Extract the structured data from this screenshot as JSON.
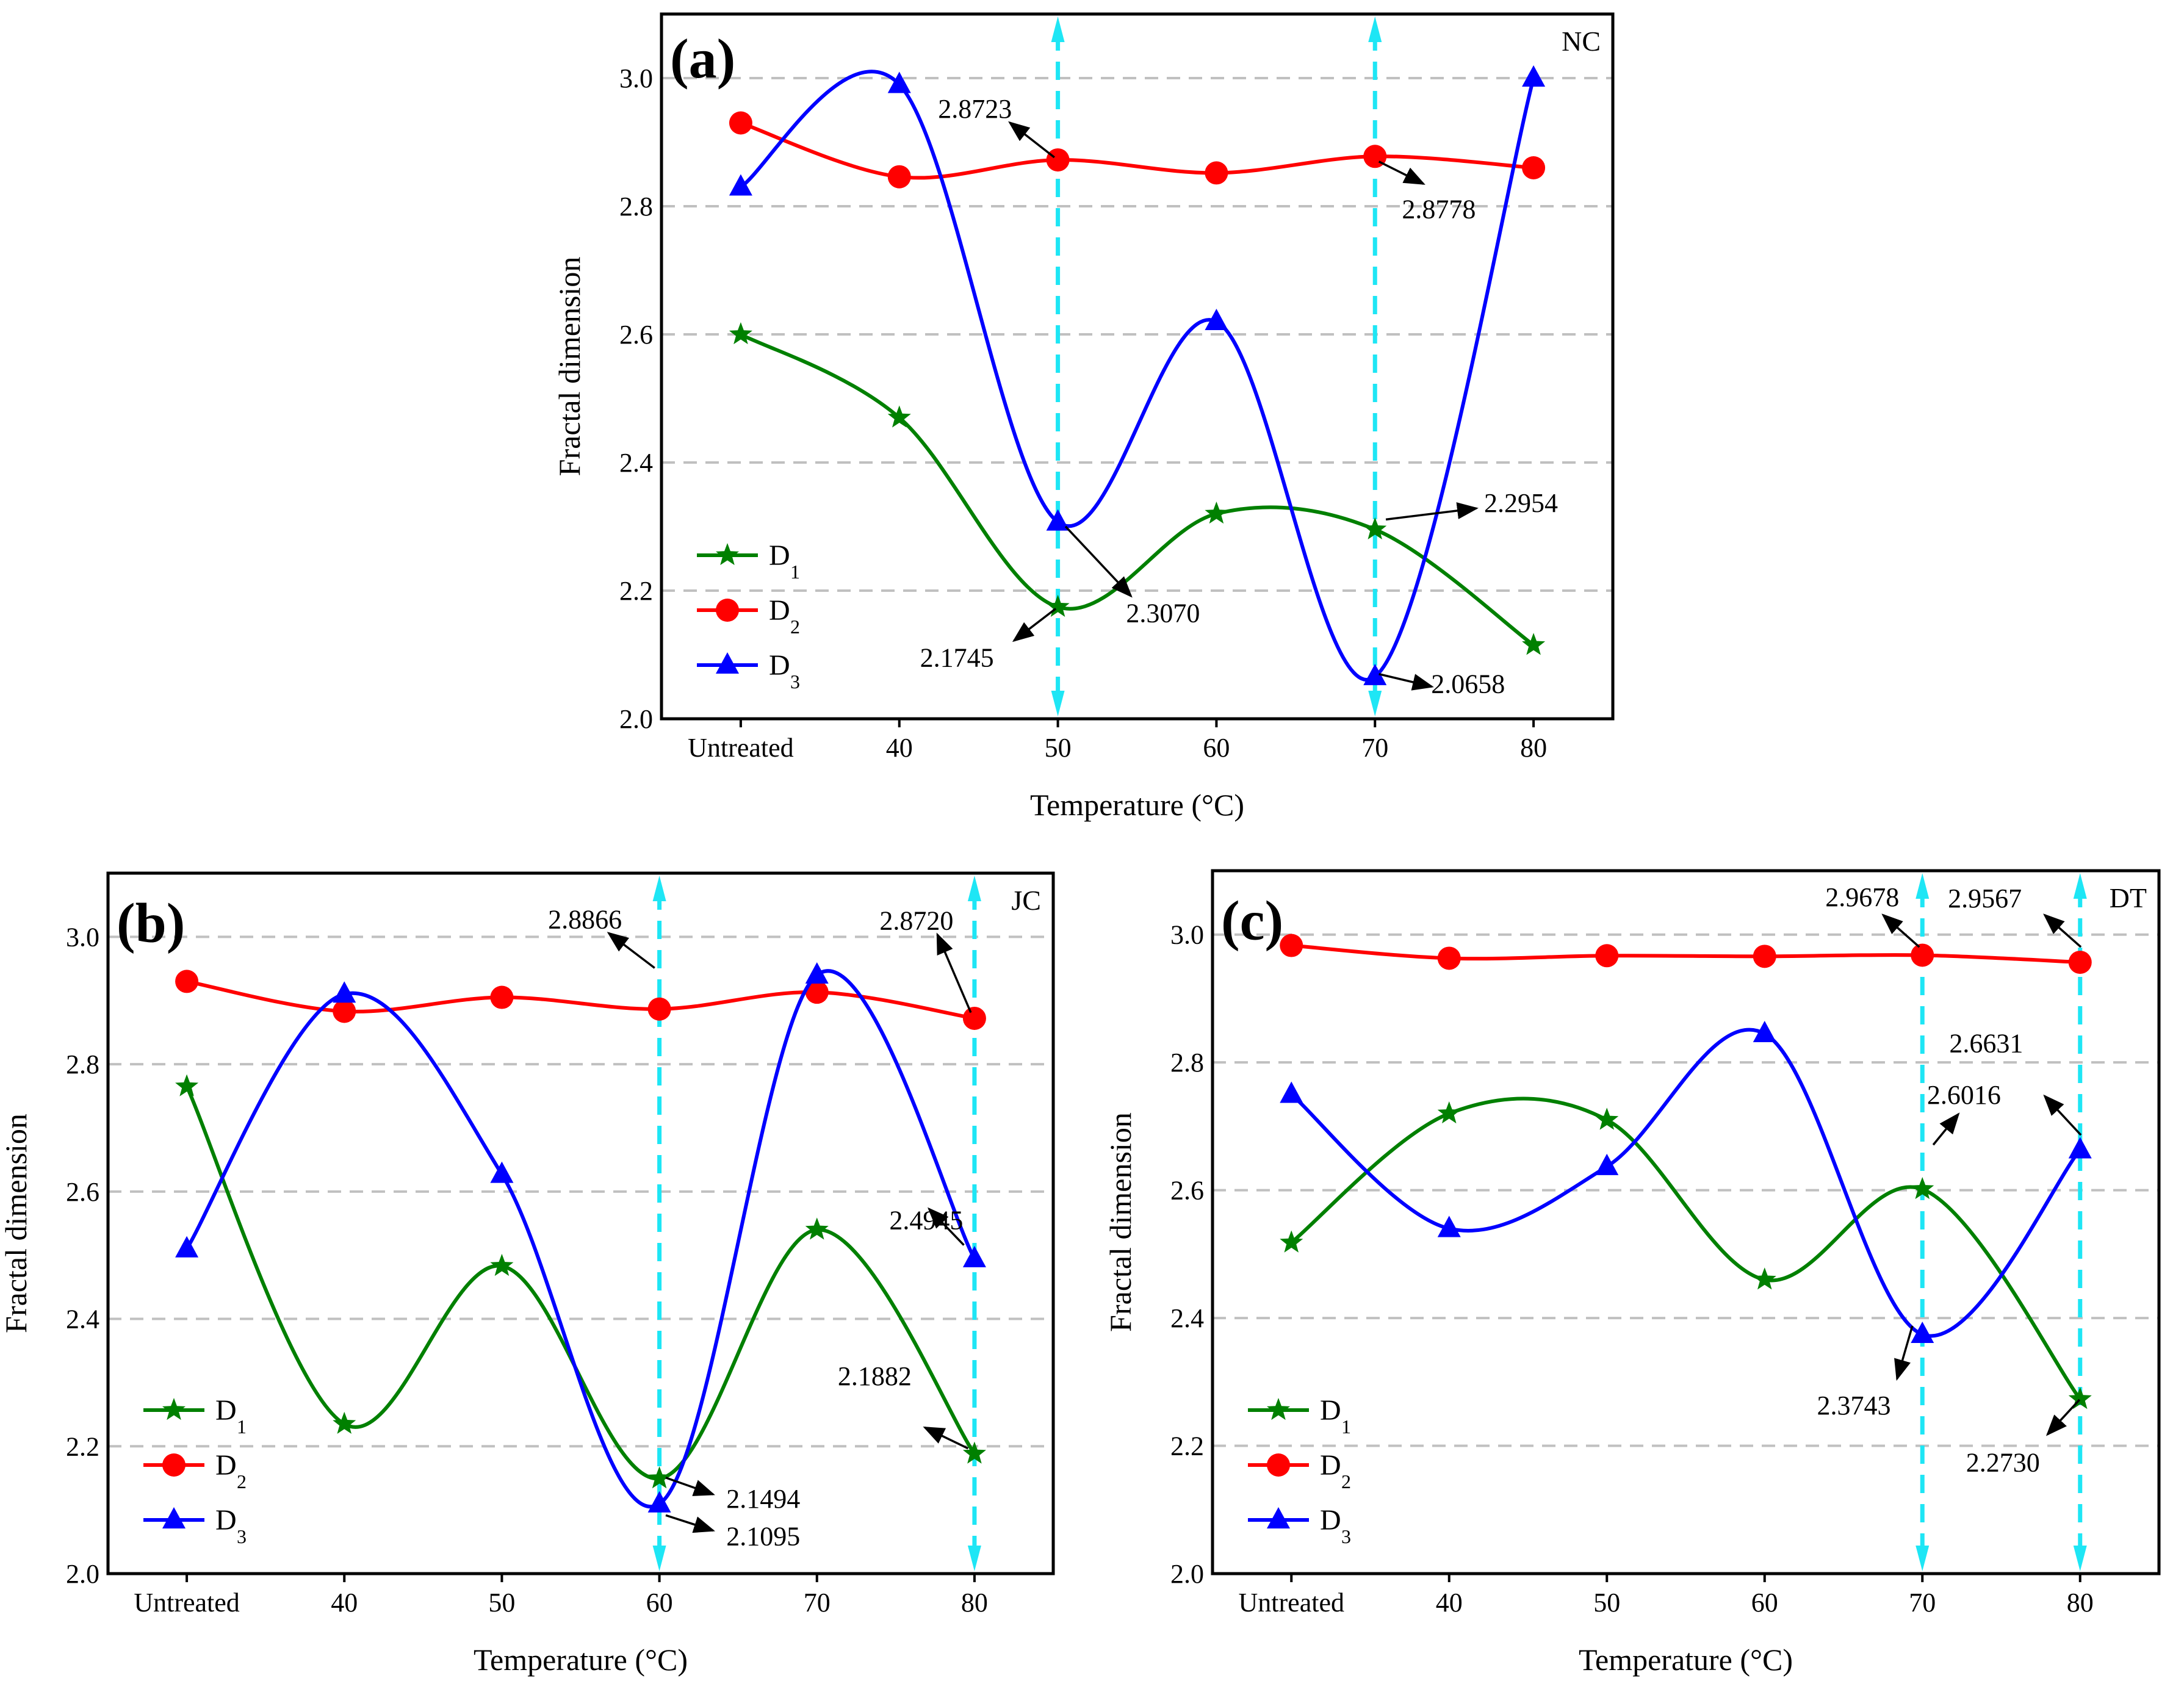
{
  "chart_data": [
    {
      "type": "line",
      "title": "(a)",
      "tag": "NC",
      "xlabel": "Temperature (°C)",
      "ylabel": "Fractal dimension",
      "categories": [
        "Untreated",
        "40",
        "50",
        "60",
        "70",
        "80"
      ],
      "ylim": [
        2.0,
        3.1
      ],
      "yticks": [
        "2.0",
        "2.2",
        "2.4",
        "2.6",
        "2.8",
        "3.0"
      ],
      "grid": true,
      "legend": "bottom-left",
      "highlight_categories": [
        "50",
        "70"
      ],
      "series": [
        {
          "name": "D1",
          "main": "D",
          "sub": "1",
          "color": "#008000",
          "marker": "star",
          "values": [
            2.6,
            2.47,
            2.1745,
            2.32,
            2.2954,
            2.115
          ]
        },
        {
          "name": "D2",
          "main": "D",
          "sub": "2",
          "color": "#ff0000",
          "marker": "circle",
          "values": [
            2.93,
            2.846,
            2.8723,
            2.852,
            2.8778,
            2.86
          ]
        },
        {
          "name": "D3",
          "main": "D",
          "sub": "3",
          "color": "#0000ff",
          "marker": "triangle",
          "values": [
            2.83,
            2.99,
            2.307,
            2.62,
            2.0658,
            3.0
          ]
        }
      ],
      "annotations": [
        {
          "series": "D2",
          "category": "50",
          "text": "2.8723"
        },
        {
          "series": "D2",
          "category": "70",
          "text": "2.8778"
        },
        {
          "series": "D1",
          "category": "70",
          "text": "2.2954"
        },
        {
          "series": "D3",
          "category": "50",
          "text": "2.3070"
        },
        {
          "series": "D1",
          "category": "50",
          "text": "2.1745"
        },
        {
          "series": "D3",
          "category": "70",
          "text": "2.0658"
        }
      ]
    },
    {
      "type": "line",
      "title": "(b)",
      "tag": "JC",
      "xlabel": "Temperature (°C)",
      "ylabel": "Fractal dimension",
      "categories": [
        "Untreated",
        "40",
        "50",
        "60",
        "70",
        "80"
      ],
      "ylim": [
        2.0,
        3.1
      ],
      "yticks": [
        "2.0",
        "2.2",
        "2.4",
        "2.6",
        "2.8",
        "3.0"
      ],
      "grid": true,
      "legend": "bottom-left",
      "highlight_categories": [
        "60",
        "80"
      ],
      "series": [
        {
          "name": "D1",
          "main": "D",
          "sub": "1",
          "color": "#008000",
          "marker": "star",
          "values": [
            2.765,
            2.235,
            2.483,
            2.1494,
            2.54,
            2.1882
          ]
        },
        {
          "name": "D2",
          "main": "D",
          "sub": "2",
          "color": "#ff0000",
          "marker": "circle",
          "values": [
            2.93,
            2.883,
            2.905,
            2.8866,
            2.913,
            2.872
          ]
        },
        {
          "name": "D3",
          "main": "D",
          "sub": "3",
          "color": "#0000ff",
          "marker": "triangle",
          "values": [
            2.51,
            2.91,
            2.627,
            2.1095,
            2.94,
            2.4945
          ]
        }
      ],
      "annotations": [
        {
          "series": "D2",
          "category": "60",
          "text": "2.8866"
        },
        {
          "series": "D2",
          "category": "80",
          "text": "2.8720"
        },
        {
          "series": "D3",
          "category": "80",
          "text": "2.4945"
        },
        {
          "series": "D1",
          "category": "80",
          "text": "2.1882"
        },
        {
          "series": "D1",
          "category": "60",
          "text": "2.1494"
        },
        {
          "series": "D3",
          "category": "60",
          "text": "2.1095"
        }
      ]
    },
    {
      "type": "line",
      "title": "(c)",
      "tag": "DT",
      "xlabel": "Temperature (°C)",
      "ylabel": "Fractal dimension",
      "categories": [
        "Untreated",
        "40",
        "50",
        "60",
        "70",
        "80"
      ],
      "ylim": [
        2.0,
        3.1
      ],
      "yticks": [
        "2.0",
        "2.2",
        "2.4",
        "2.6",
        "2.8",
        "3.0"
      ],
      "grid": true,
      "legend": "bottom-left",
      "highlight_categories": [
        "70",
        "80"
      ],
      "series": [
        {
          "name": "D1",
          "main": "D",
          "sub": "1",
          "color": "#008000",
          "marker": "star",
          "values": [
            2.518,
            2.72,
            2.71,
            2.46,
            2.6016,
            2.273
          ]
        },
        {
          "name": "D2",
          "main": "D",
          "sub": "2",
          "color": "#ff0000",
          "marker": "circle",
          "values": [
            2.983,
            2.963,
            2.967,
            2.966,
            2.9678,
            2.9567
          ]
        },
        {
          "name": "D3",
          "main": "D",
          "sub": "3",
          "color": "#0000ff",
          "marker": "triangle",
          "values": [
            2.75,
            2.54,
            2.637,
            2.845,
            2.3743,
            2.6631
          ]
        }
      ],
      "annotations": [
        {
          "series": "D2",
          "category": "70",
          "text": "2.9678"
        },
        {
          "series": "D2",
          "category": "80",
          "text": "2.9567"
        },
        {
          "series": "D3",
          "category": "80",
          "text": "2.6631"
        },
        {
          "series": "D1",
          "category": "70",
          "text": "2.6016"
        },
        {
          "series": "D3",
          "category": "70",
          "text": "2.3743"
        },
        {
          "series": "D1",
          "category": "80",
          "text": "2.2730"
        }
      ]
    }
  ],
  "colors": {
    "highlight": "#1ee6f5",
    "grid": "#c0c0c0",
    "annotation": "#000000"
  }
}
